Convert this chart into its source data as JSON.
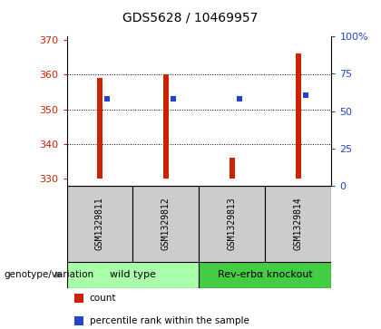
{
  "title": "GDS5628 / 10469957",
  "samples": [
    "GSM1329811",
    "GSM1329812",
    "GSM1329813",
    "GSM1329814"
  ],
  "bar_base": 330,
  "bar_tops": [
    359,
    360,
    336,
    366
  ],
  "percentile_values": [
    353,
    353,
    353,
    354
  ],
  "ylim_left": [
    328,
    371
  ],
  "ylim_right": [
    0,
    100
  ],
  "yticks_left": [
    330,
    340,
    350,
    360,
    370
  ],
  "yticks_right": [
    0,
    25,
    50,
    75,
    100
  ],
  "ytick_labels_right": [
    "0",
    "25",
    "50",
    "75",
    "100%"
  ],
  "bar_color": "#cc2200",
  "blue_color": "#2244cc",
  "groups": [
    {
      "label": "wild type",
      "samples": [
        0,
        1
      ],
      "color": "#aaffaa"
    },
    {
      "label": "Rev-erbα knockout",
      "samples": [
        2,
        3
      ],
      "color": "#44cc44"
    }
  ],
  "genotype_label": "genotype/variation",
  "legend_items": [
    {
      "color": "#cc2200",
      "label": "count"
    },
    {
      "color": "#2244cc",
      "label": "percentile rank within the sample"
    }
  ],
  "sample_box_color": "#cccccc",
  "bar_width": 0.08
}
